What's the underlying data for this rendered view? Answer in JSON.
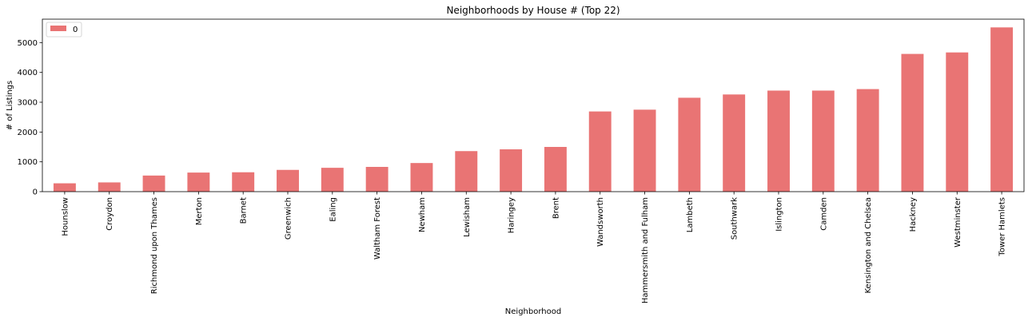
{
  "chart_data": {
    "type": "bar",
    "title": "Neighborhoods by House # (Top 22)",
    "xlabel": "Neighborhood",
    "ylabel": "# of Listings",
    "categories": [
      "Hounslow",
      "Croydon",
      "Richmond upon Thames",
      "Merton",
      "Barnet",
      "Greenwich",
      "Ealing",
      "Waltham Forest",
      "Newham",
      "Lewisham",
      "Haringey",
      "Brent",
      "Wandsworth",
      "Hammersmith and Fulham",
      "Lambeth",
      "Southwark",
      "Islington",
      "Camden",
      "Kensington and Chelsea",
      "Hackney",
      "Westminster",
      "Tower Hamlets"
    ],
    "series": [
      {
        "name": "0",
        "color": "#e97474",
        "values": [
          280,
          310,
          540,
          640,
          650,
          730,
          800,
          830,
          960,
          1360,
          1420,
          1500,
          2690,
          2750,
          3150,
          3260,
          3390,
          3390,
          3440,
          4620,
          4670,
          5510
        ]
      }
    ],
    "ylim": [
      0,
      5786
    ],
    "yticks": [
      0,
      1000,
      2000,
      3000,
      4000,
      5000
    ],
    "grid": false,
    "legend_position": "top-left"
  }
}
